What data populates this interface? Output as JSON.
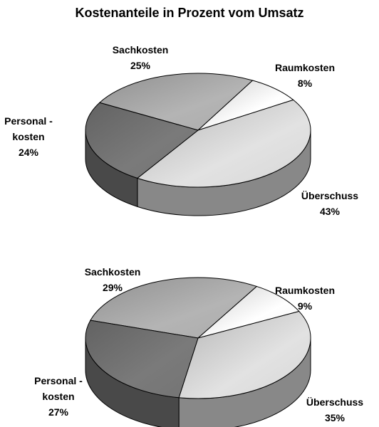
{
  "title": "Kostenanteile in Prozent vom Umsatz",
  "chart_data": [
    {
      "type": "pie",
      "categories": [
        "Sachkosten",
        "Raumkosten",
        "Überschuss",
        "Personal -\nkosten"
      ],
      "values": [
        25,
        8,
        43,
        24
      ],
      "value_labels": [
        "25%",
        "8%",
        "43%",
        "24%"
      ],
      "colors": [
        "#b4b4b4",
        "#ffffff",
        "#e2e2e2",
        "#7a7a7a"
      ]
    },
    {
      "type": "pie",
      "categories": [
        "Sachkosten",
        "Raumkosten",
        "Überschuss",
        "Personal -\nkosten"
      ],
      "values": [
        29,
        9,
        35,
        27
      ],
      "value_labels": [
        "29%",
        "9%",
        "35%",
        "27%"
      ],
      "colors": [
        "#b4b4b4",
        "#ffffff",
        "#e2e2e2",
        "#7a7a7a"
      ]
    }
  ]
}
